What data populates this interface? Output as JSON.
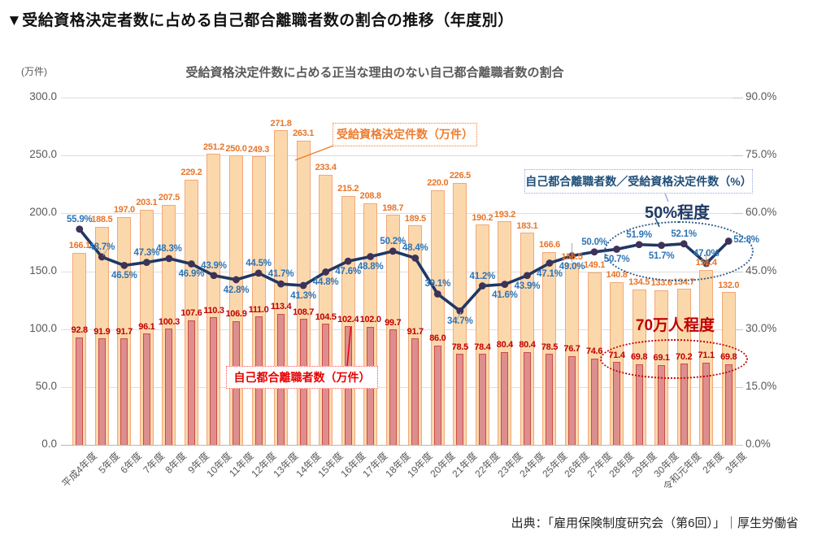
{
  "page": {
    "title": "▼受給資格決定者数に占める自己都合離職者数の割合の推移（年度別）",
    "source": "出典：「雇用保険制度研究会（第6回）」｜厚生労働省"
  },
  "chart_data": {
    "type": "combo-bar-line",
    "title": "受給資格決定件数に占める正当な理由のない自己都合離職者数の割合",
    "left_axis": {
      "unit": "(万件)",
      "min": 0,
      "max": 300,
      "ticks": [
        "300.0",
        "250.0",
        "200.0",
        "150.0",
        "100.0",
        "50.0",
        "0.0"
      ]
    },
    "right_axis": {
      "min": 0,
      "max": 90,
      "ticks": [
        "90.0%",
        "75.0%",
        "60.0%",
        "45.0%",
        "30.0%",
        "15.0%",
        "0.0%"
      ]
    },
    "grid": true,
    "categories": [
      "平成4年度",
      "5年度",
      "6年度",
      "7年度",
      "8年度",
      "9年度",
      "10年度",
      "11年度",
      "12年度",
      "13年度",
      "14年度",
      "15年度",
      "16年度",
      "17年度",
      "18年度",
      "19年度",
      "20年度",
      "21年度",
      "22年度",
      "23年度",
      "24年度",
      "25年度",
      "26年度",
      "27年度",
      "28年度",
      "29年度",
      "30年度",
      "令和元年度",
      "2年度",
      "3年度"
    ],
    "series": [
      {
        "name": "受給資格決定件数（万件）",
        "type": "bar",
        "axis": "left",
        "fill": "#FBD8AC",
        "stroke": "#F2A878",
        "label_color": "#E8752A",
        "values": [
          166.1,
          188.5,
          197.0,
          203.1,
          207.5,
          229.2,
          251.2,
          250.0,
          249.3,
          271.8,
          263.1,
          233.4,
          215.2,
          208.8,
          198.7,
          189.5,
          220.0,
          226.5,
          190.2,
          193.2,
          183.1,
          166.6,
          156.5,
          149.1,
          140.8,
          134.5,
          133.6,
          134.7,
          151.4,
          132.0
        ]
      },
      {
        "name": "自己都合離職者数（万件）",
        "type": "bar",
        "axis": "left",
        "fill": "#DD8E8E",
        "stroke": "#CC4B47",
        "label_color": "#C00000",
        "values": [
          92.8,
          91.9,
          91.7,
          96.1,
          100.3,
          107.6,
          110.3,
          106.9,
          111.0,
          113.4,
          108.7,
          104.5,
          102.4,
          102.0,
          99.7,
          91.7,
          86.0,
          78.5,
          78.4,
          80.4,
          80.4,
          78.5,
          76.7,
          74.6,
          71.4,
          69.8,
          69.1,
          70.2,
          71.1,
          69.8
        ]
      },
      {
        "name": "自己都合離職者数／受給資格決定件数（%）",
        "type": "line",
        "axis": "right",
        "stroke": "#1F3864",
        "marker_fill": "#3E3257",
        "label_color": "#2E74B5",
        "values": [
          55.9,
          48.7,
          46.5,
          47.3,
          48.3,
          46.9,
          43.9,
          42.8,
          44.5,
          41.7,
          41.3,
          44.8,
          47.6,
          48.8,
          50.2,
          48.4,
          39.1,
          34.7,
          41.2,
          41.6,
          43.9,
          47.1,
          49.0,
          50.0,
          50.7,
          51.9,
          51.7,
          52.1,
          47.0,
          52.8
        ]
      }
    ],
    "layout_hints": {
      "legend_position": "floating-boxes",
      "pct_label_side": [
        "above",
        "above",
        "below",
        "above",
        "above",
        "below",
        "above",
        "below",
        "above",
        "above",
        "below",
        "below",
        "below",
        "below",
        "above",
        "above",
        "above",
        "below",
        "above",
        "below",
        "below",
        "below",
        "below",
        "above",
        "below",
        "above",
        "below",
        "above",
        "above",
        "right"
      ]
    },
    "annotations": {
      "orange_box": "受給資格決定件数（万件）",
      "blue_box": "自己都合離職者数／受給資格決定件数（%）",
      "red_box": "自己都合離職者数（万件）",
      "fifty_label": "50%程度",
      "seventy_label": "70万人程度"
    }
  }
}
